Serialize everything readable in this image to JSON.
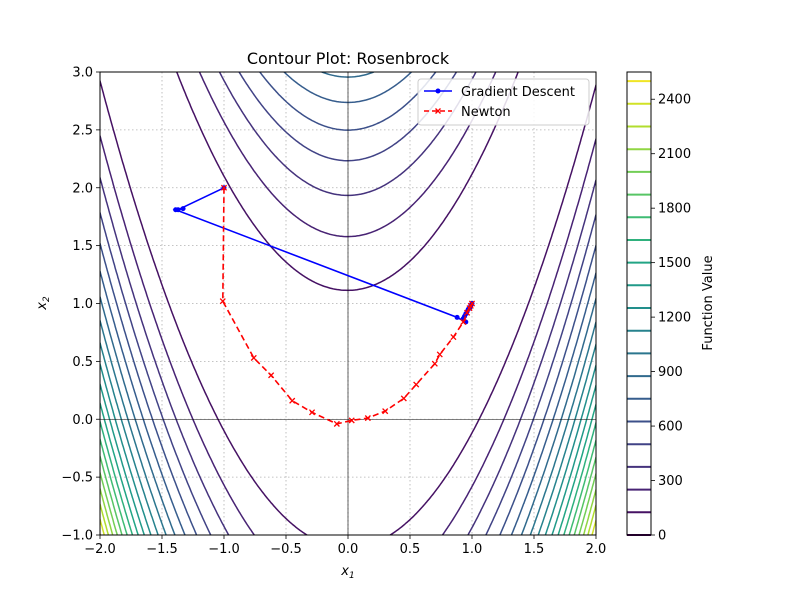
{
  "chart_data": {
    "type": "line",
    "title": "Contour Plot: Rosenbrock",
    "xlabel": "x",
    "xlabel_sub": "1",
    "ylabel": "x",
    "ylabel_sub": "2",
    "xlim": [
      -2.0,
      2.0
    ],
    "ylim": [
      -1.0,
      3.0
    ],
    "x_ticks": [
      -2.0,
      -1.5,
      -1.0,
      -0.5,
      0.0,
      0.5,
      1.0,
      1.5,
      2.0
    ],
    "x_tick_labels": [
      "−2.0",
      "−1.5",
      "−1.0",
      "−0.5",
      "0.0",
      "0.5",
      "1.0",
      "1.5",
      "2.0"
    ],
    "y_ticks": [
      -1.0,
      -0.5,
      0.0,
      0.5,
      1.0,
      1.5,
      2.0,
      2.5,
      3.0
    ],
    "y_tick_labels": [
      "−1.0",
      "−0.5",
      "0.0",
      "0.5",
      "1.0",
      "1.5",
      "2.0",
      "2.5",
      "3.0"
    ],
    "grid": true,
    "legend_position": "top-right",
    "contours": {
      "function": "rosenbrock",
      "levels": [
        0,
        125,
        250,
        375,
        500,
        625,
        750,
        875,
        1000,
        1125,
        1250,
        1375,
        1500,
        1625,
        1750,
        1875,
        2000,
        2125,
        2250,
        2375,
        2500
      ],
      "colormap": "viridis"
    },
    "colorbar": {
      "label": "Function Value",
      "range": [
        0,
        2550
      ],
      "ticks": [
        0,
        300,
        600,
        900,
        1200,
        1500,
        1800,
        2100,
        2400
      ],
      "tick_labels": [
        "0",
        "300",
        "600",
        "900",
        "1200",
        "1500",
        "1800",
        "2100",
        "2400"
      ]
    },
    "series": [
      {
        "name": "Gradient Descent",
        "color": "#0000ff",
        "linestyle": "solid",
        "marker": "dot",
        "x": [
          -1.0,
          -1.37,
          -1.33,
          -1.39,
          0.88,
          0.95,
          0.93,
          0.94,
          0.95,
          0.96,
          0.97,
          0.98,
          0.99,
          1.0
        ],
        "y": [
          2.0,
          1.81,
          1.82,
          1.81,
          0.88,
          0.84,
          0.87,
          0.89,
          0.91,
          0.93,
          0.95,
          0.96,
          0.98,
          1.0
        ]
      },
      {
        "name": "Newton",
        "color": "#ff0000",
        "linestyle": "dashed",
        "marker": "x",
        "x": [
          -1.0,
          -1.01,
          -0.76,
          -0.62,
          -0.45,
          -0.29,
          -0.09,
          0.03,
          0.16,
          0.3,
          0.45,
          0.55,
          0.7,
          0.74,
          0.85,
          0.93,
          0.96,
          0.98,
          0.99,
          1.0
        ],
        "y": [
          2.0,
          1.02,
          0.53,
          0.38,
          0.16,
          0.06,
          -0.04,
          -0.01,
          0.01,
          0.07,
          0.18,
          0.3,
          0.48,
          0.56,
          0.71,
          0.84,
          0.92,
          0.96,
          0.98,
          1.0
        ]
      }
    ]
  }
}
